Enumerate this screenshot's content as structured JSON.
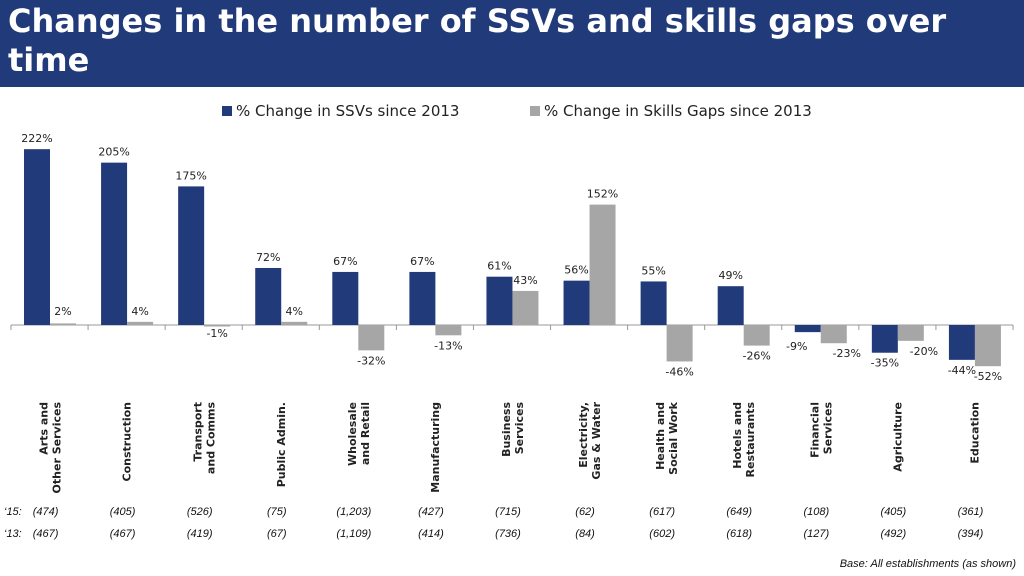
{
  "title": "Changes in the number of SSVs and skills gaps over time",
  "base_note": "Base: All establishments (as shown)",
  "colors": {
    "header": "#213a7a",
    "ssv": "#213a7a",
    "gaps": "#a6a6a6"
  },
  "legend": [
    {
      "label": "% Change in SSVs since 2013",
      "color": "#213a7a"
    },
    {
      "label": "% Change in Skills Gaps since 2013",
      "color": "#a6a6a6"
    }
  ],
  "bases": {
    "rows": [
      {
        "label": "‘15:",
        "values": [
          "(474)",
          "(405)",
          "(526)",
          "(75)",
          "(1,203)",
          "(427)",
          "(715)",
          "(62)",
          "(617)",
          "(649)",
          "(108)",
          "(405)",
          "(361)"
        ]
      },
      {
        "label": "‘13:",
        "values": [
          "(467)",
          "(467)",
          "(419)",
          "(67)",
          "(1,109)",
          "(414)",
          "(736)",
          "(84)",
          "(602)",
          "(618)",
          "(127)",
          "(492)",
          "(394)"
        ]
      }
    ]
  },
  "chart_data": {
    "type": "bar",
    "categories": [
      "Arts and Other Services",
      "Construction",
      "Transport and Comms",
      "Public Admin.",
      "Wholesale and Retail",
      "Manufacturing",
      "Business Services",
      "Electricity, Gas & Water",
      "Health and Social Work",
      "Hotels and Restaurants",
      "Financial Services",
      "Agriculture",
      "Education"
    ],
    "series": [
      {
        "name": "% Change in SSVs since 2013",
        "values": [
          222,
          205,
          175,
          72,
          67,
          67,
          61,
          56,
          55,
          49,
          -9,
          -35,
          -44
        ]
      },
      {
        "name": "% Change in Skills Gaps since 2013",
        "values": [
          2,
          4,
          -1,
          4,
          -32,
          -13,
          43,
          152,
          -46,
          -26,
          -23,
          -20,
          -52
        ]
      }
    ],
    "data_labels": [
      [
        "222%",
        "205%",
        "175%",
        "72%",
        "67%",
        "67%",
        "61%",
        "56%",
        "55%",
        "49%",
        "-9%",
        "-35%",
        "-44%"
      ],
      [
        "2%",
        "4%",
        "-1%",
        "4%",
        "-32%",
        "-13%",
        "43%",
        "152%",
        "-46%",
        "-26%",
        "-23%",
        "-20%",
        "-52%"
      ]
    ],
    "ylim": [
      -52,
      222
    ],
    "grid": false
  }
}
